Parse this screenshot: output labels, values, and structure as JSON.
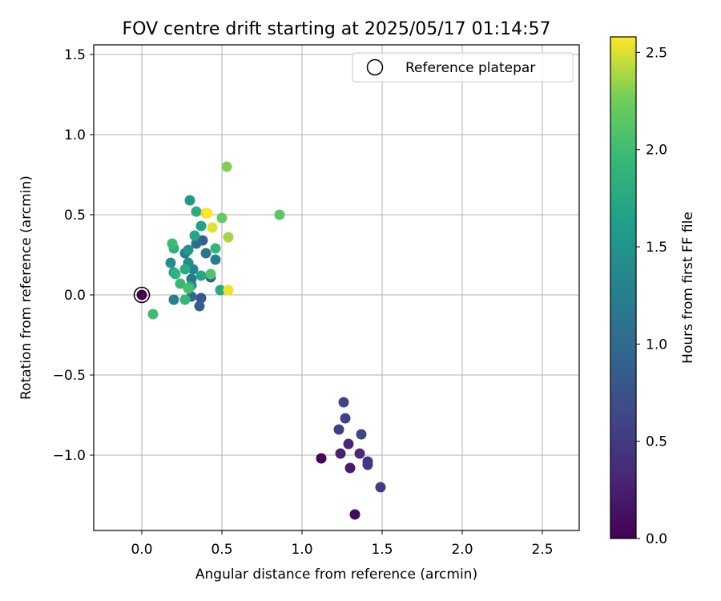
{
  "chart_data": {
    "type": "scatter",
    "title": "FOV centre drift starting at 2025/05/17 01:14:57",
    "xlabel": "Angular distance from reference (arcmin)",
    "ylabel": "Rotation from reference (arcmin)",
    "xlim": [
      -0.3,
      2.73
    ],
    "ylim": [
      -1.47,
      1.56
    ],
    "xticks": [
      0.0,
      0.5,
      1.0,
      1.5,
      2.0,
      2.5
    ],
    "yticks": [
      -1.0,
      -0.5,
      0.0,
      0.5,
      1.0,
      1.5
    ],
    "xtick_labels": [
      "0.0",
      "0.5",
      "1.0",
      "1.5",
      "2.0",
      "2.5"
    ],
    "ytick_labels": [
      "−1.0",
      "−0.5",
      "0.0",
      "0.5",
      "1.0",
      "1.5"
    ],
    "grid": true,
    "legend": {
      "placement": "top-right",
      "entries": [
        "Reference platepar"
      ]
    },
    "reference_point": {
      "x": 0.0,
      "y": 0.0
    },
    "colorbar": {
      "label": "Hours from first FF file",
      "colormap": "viridis",
      "range": [
        0.0,
        2.58
      ],
      "ticks": [
        0.0,
        0.5,
        1.0,
        1.5,
        2.0,
        2.5
      ],
      "tick_labels": [
        "0.0",
        "0.5",
        "1.0",
        "1.5",
        "2.0",
        "2.5"
      ]
    },
    "points": [
      {
        "x": 0.0,
        "y": 0.0,
        "c": 0.0
      },
      {
        "x": 1.12,
        "y": -1.02,
        "c": 0.02
      },
      {
        "x": 1.33,
        "y": -1.37,
        "c": 0.08
      },
      {
        "x": 1.3,
        "y": -1.08,
        "c": 0.22
      },
      {
        "x": 1.24,
        "y": -0.99,
        "c": 0.28
      },
      {
        "x": 1.29,
        "y": -0.93,
        "c": 0.32
      },
      {
        "x": 1.36,
        "y": -0.99,
        "c": 0.36
      },
      {
        "x": 1.41,
        "y": -1.04,
        "c": 0.42
      },
      {
        "x": 1.41,
        "y": -1.06,
        "c": 0.48
      },
      {
        "x": 1.49,
        "y": -1.2,
        "c": 0.52
      },
      {
        "x": 1.23,
        "y": -0.84,
        "c": 0.55
      },
      {
        "x": 1.27,
        "y": -0.77,
        "c": 0.58
      },
      {
        "x": 1.26,
        "y": -0.67,
        "c": 0.6
      },
      {
        "x": 1.37,
        "y": -0.87,
        "c": 0.62
      },
      {
        "x": 0.37,
        "y": -0.02,
        "c": 0.8
      },
      {
        "x": 0.36,
        "y": -0.07,
        "c": 0.85
      },
      {
        "x": 0.38,
        "y": 0.34,
        "c": 0.9
      },
      {
        "x": 0.43,
        "y": 0.11,
        "c": 0.95
      },
      {
        "x": 0.31,
        "y": -0.01,
        "c": 1.0
      },
      {
        "x": 0.34,
        "y": 0.32,
        "c": 1.05
      },
      {
        "x": 0.4,
        "y": 0.26,
        "c": 1.1
      },
      {
        "x": 0.31,
        "y": 0.1,
        "c": 1.15
      },
      {
        "x": 0.27,
        "y": 0.26,
        "c": 1.2
      },
      {
        "x": 0.31,
        "y": 0.06,
        "c": 1.22
      },
      {
        "x": 0.46,
        "y": 0.22,
        "c": 1.25
      },
      {
        "x": 0.2,
        "y": -0.03,
        "c": 1.3
      },
      {
        "x": 0.32,
        "y": 0.16,
        "c": 1.35
      },
      {
        "x": 0.29,
        "y": 0.2,
        "c": 1.4
      },
      {
        "x": 0.18,
        "y": 0.2,
        "c": 1.45
      },
      {
        "x": 0.29,
        "y": 0.28,
        "c": 1.5
      },
      {
        "x": 0.3,
        "y": 0.59,
        "c": 1.55
      },
      {
        "x": 0.2,
        "y": 0.14,
        "c": 1.6
      },
      {
        "x": 0.37,
        "y": 0.43,
        "c": 1.65
      },
      {
        "x": 0.33,
        "y": 0.37,
        "c": 1.7
      },
      {
        "x": 0.37,
        "y": 0.12,
        "c": 1.72
      },
      {
        "x": 0.49,
        "y": 0.03,
        "c": 1.75
      },
      {
        "x": 0.27,
        "y": 0.16,
        "c": 1.78
      },
      {
        "x": 0.34,
        "y": 0.52,
        "c": 1.8
      },
      {
        "x": 0.3,
        "y": 0.05,
        "c": 1.82
      },
      {
        "x": 0.2,
        "y": 0.29,
        "c": 1.85
      },
      {
        "x": 0.21,
        "y": 0.13,
        "c": 1.88
      },
      {
        "x": 0.46,
        "y": 0.29,
        "c": 1.9
      },
      {
        "x": 0.27,
        "y": -0.03,
        "c": 1.93
      },
      {
        "x": 0.24,
        "y": 0.07,
        "c": 1.95
      },
      {
        "x": 0.19,
        "y": 0.32,
        "c": 1.98
      },
      {
        "x": 0.07,
        "y": -0.12,
        "c": 2.0
      },
      {
        "x": 0.29,
        "y": 0.04,
        "c": 2.05
      },
      {
        "x": 0.43,
        "y": 0.13,
        "c": 2.1
      },
      {
        "x": 0.86,
        "y": 0.5,
        "c": 2.15
      },
      {
        "x": 0.5,
        "y": 0.48,
        "c": 2.2
      },
      {
        "x": 0.53,
        "y": 0.8,
        "c": 2.3
      },
      {
        "x": 0.54,
        "y": 0.36,
        "c": 2.38
      },
      {
        "x": 0.4,
        "y": 0.51,
        "c": 2.47
      },
      {
        "x": 0.44,
        "y": 0.42,
        "c": 2.52
      },
      {
        "x": 0.54,
        "y": 0.03,
        "c": 2.55
      },
      {
        "x": 0.41,
        "y": 0.51,
        "c": 2.58
      }
    ]
  }
}
